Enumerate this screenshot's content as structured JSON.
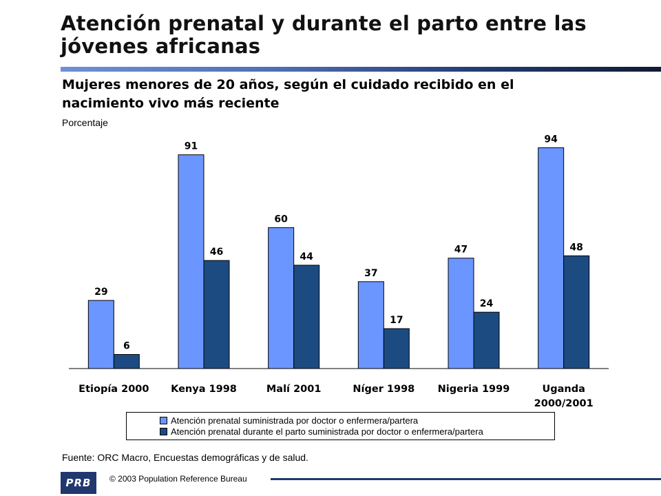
{
  "header": {
    "title": "Atención prenatal y durante el parto entre las jóvenes africanas",
    "subtitle": "Mujeres menores de 20 años, según el cuidado recibido en el nacimiento vivo más reciente"
  },
  "footer": {
    "source": "Fuente: ORC Macro, Encuestas demográficas y de salud.",
    "copyright": "© 2003 Population Reference Bureau",
    "logo_text": "PRB"
  },
  "colors": {
    "series1": "#6b96ff",
    "series2": "#1c4b82",
    "accent": "#20386e"
  },
  "chart_data": {
    "type": "bar",
    "title": "Atención prenatal y durante el parto entre las jóvenes africanas",
    "ylabel": "Porcentaje",
    "xlabel": "",
    "ylim": [
      0,
      100
    ],
    "grid": false,
    "legend": "bottom",
    "categories": [
      "Etiopía 2000",
      "Kenya 1998",
      "Malí 2001",
      "Níger 1998",
      "Nigeria 1999",
      "Uganda 2000/2001"
    ],
    "category_lines": [
      [
        "Etiopía 2000"
      ],
      [
        "Kenya 1998"
      ],
      [
        "Malí 2001"
      ],
      [
        "Níger 1998"
      ],
      [
        "Nigeria 1999"
      ],
      [
        "Uganda",
        "2000/2001"
      ]
    ],
    "series": [
      {
        "name": "Atención prenatal suministrada por doctor o enfermera/partera",
        "values": [
          29,
          91,
          60,
          37,
          47,
          94
        ]
      },
      {
        "name": "Atención prenatal durante el parto suministrada por doctor o enfermera/partera",
        "values": [
          6,
          46,
          44,
          17,
          24,
          48
        ]
      }
    ]
  }
}
